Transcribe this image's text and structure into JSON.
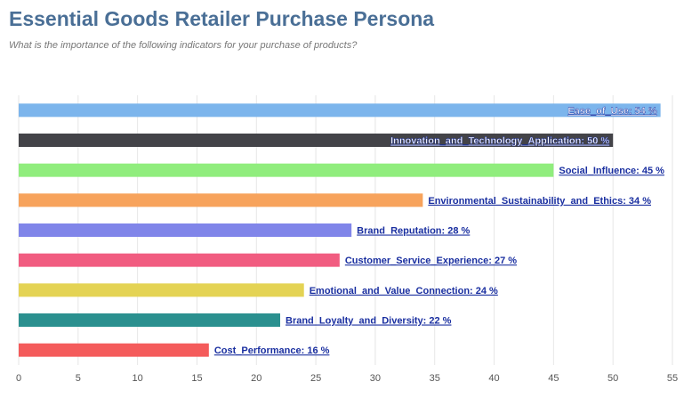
{
  "chart_data": {
    "type": "bar",
    "orientation": "horizontal",
    "title": "Essential Goods Retailer Purchase Persona",
    "subtitle": "What is the importance of the following indicators for your purchase of products?",
    "categories": [
      "Ease_of_Use",
      "Innovation_and_Technology_Application",
      "Social_Influence",
      "Environmental_Sustainability_and_Ethics",
      "Brand_Reputation",
      "Customer_Service_Experience",
      "Emotional_and_Value_Connection",
      "Brand_Loyalty_and_Diversity",
      "Cost_Performance"
    ],
    "values": [
      54,
      50,
      45,
      34,
      28,
      27,
      24,
      22,
      16
    ],
    "value_suffix": " %",
    "colors": [
      "#7cb5ec",
      "#434348",
      "#90ed7d",
      "#f7a35c",
      "#8085e9",
      "#f15c80",
      "#e4d354",
      "#2b908f",
      "#f45b5b"
    ],
    "label_color_outside": "#1a2fa0",
    "label_color_inside": "#ffffff",
    "xlim": [
      0,
      55
    ],
    "xticks": [
      0,
      5,
      10,
      15,
      20,
      25,
      30,
      35,
      40,
      45,
      50,
      55
    ],
    "grid": true
  }
}
